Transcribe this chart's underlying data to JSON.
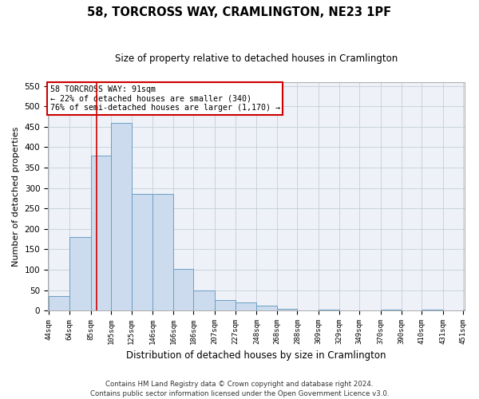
{
  "title": "58, TORCROSS WAY, CRAMLINGTON, NE23 1PF",
  "subtitle": "Size of property relative to detached houses in Cramlington",
  "xlabel": "Distribution of detached houses by size in Cramlington",
  "ylabel": "Number of detached properties",
  "footer_line1": "Contains HM Land Registry data © Crown copyright and database right 2024.",
  "footer_line2": "Contains public sector information licensed under the Open Government Licence v3.0.",
  "annotation_title": "58 TORCROSS WAY: 91sqm",
  "annotation_line1": "← 22% of detached houses are smaller (340)",
  "annotation_line2": "76% of semi-detached houses are larger (1,170) →",
  "property_size": 91,
  "bar_edges": [
    44,
    64,
    85,
    105,
    125,
    146,
    166,
    186,
    207,
    227,
    248,
    268,
    288,
    309,
    329,
    349,
    370,
    390,
    410,
    431,
    451
  ],
  "bar_heights": [
    35,
    180,
    380,
    460,
    285,
    285,
    102,
    50,
    25,
    20,
    13,
    5,
    0,
    3,
    0,
    0,
    2,
    0,
    2,
    0,
    2
  ],
  "bar_color": "#ccdcee",
  "bar_edge_color": "#6a9fc4",
  "redline_color": "#cc0000",
  "annotation_box_color": "#cc0000",
  "background_color": "#eef2f8",
  "grid_color": "#c5cdd8",
  "ylim": [
    0,
    560
  ],
  "yticks": [
    0,
    50,
    100,
    150,
    200,
    250,
    300,
    350,
    400,
    450,
    500,
    550
  ]
}
